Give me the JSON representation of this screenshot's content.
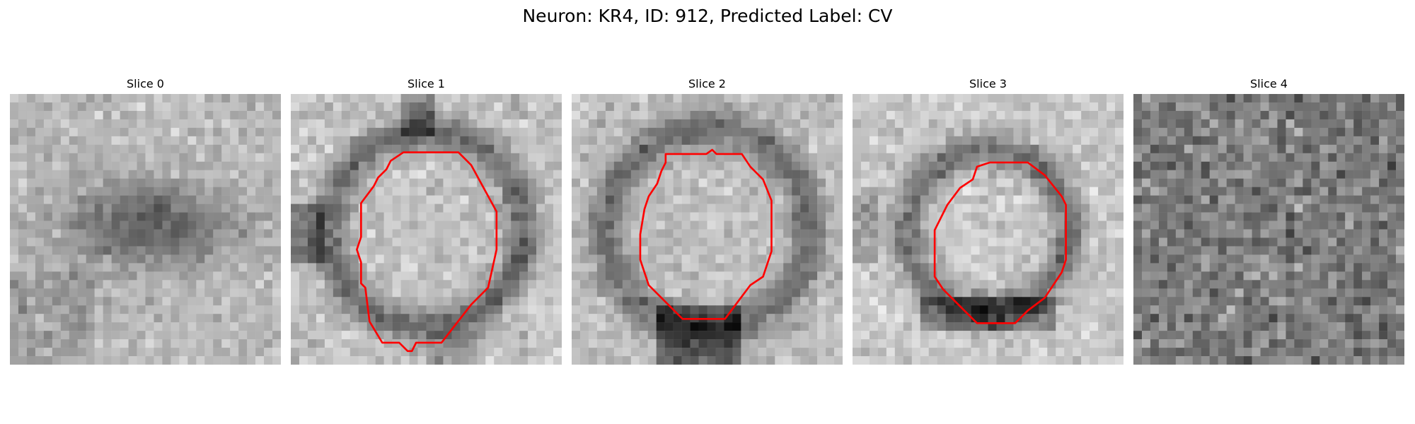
{
  "figure": {
    "suptitle": "Neuron: KR4, ID: 912, Predicted Label: CV"
  },
  "overlay_color": "#ff0000",
  "slices": [
    {
      "title": "Slice 0",
      "has_contour": false,
      "texture": "dark-blob"
    },
    {
      "title": "Slice 1",
      "has_contour": true,
      "texture": "ring"
    },
    {
      "title": "Slice 2",
      "has_contour": true,
      "texture": "ring"
    },
    {
      "title": "Slice 3",
      "has_contour": true,
      "texture": "ring-small"
    },
    {
      "title": "Slice 4",
      "has_contour": false,
      "texture": "noise"
    }
  ]
}
